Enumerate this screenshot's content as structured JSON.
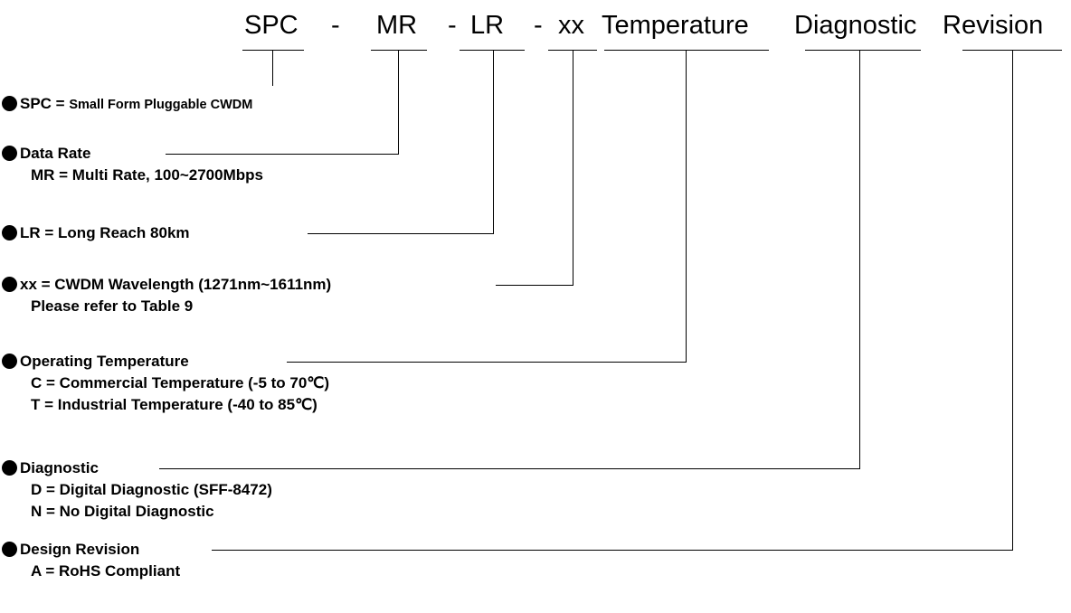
{
  "header": {
    "fields": [
      "SPC",
      "MR",
      "LR",
      "xx",
      "Temperature",
      "Diagnostic",
      "Revision"
    ],
    "separators": [
      "-",
      "-",
      "-"
    ]
  },
  "items": [
    {
      "head": "SPC = ",
      "head_small": "Small Form Pluggable CWDM",
      "lines": []
    },
    {
      "head": "Data Rate",
      "lines": [
        "MR = Multi Rate, 100~2700Mbps"
      ]
    },
    {
      "head": "LR = Long Reach 80km",
      "lines": []
    },
    {
      "head": "xx = CWDM Wavelength (1271nm~1611nm)",
      "lines": [
        "Please refer to Table 9"
      ]
    },
    {
      "head": "Operating Temperature",
      "lines": [
        "C = Commercial Temperature (-5 to 70℃)",
        "T = Industrial Temperature (-40 to 85℃)"
      ]
    },
    {
      "head": "Diagnostic",
      "lines": [
        "D = Digital Diagnostic (SFF-8472)",
        "N = No Digital Diagnostic"
      ]
    },
    {
      "head": "Design Revision",
      "lines": [
        "A = RoHS Compliant"
      ]
    }
  ]
}
